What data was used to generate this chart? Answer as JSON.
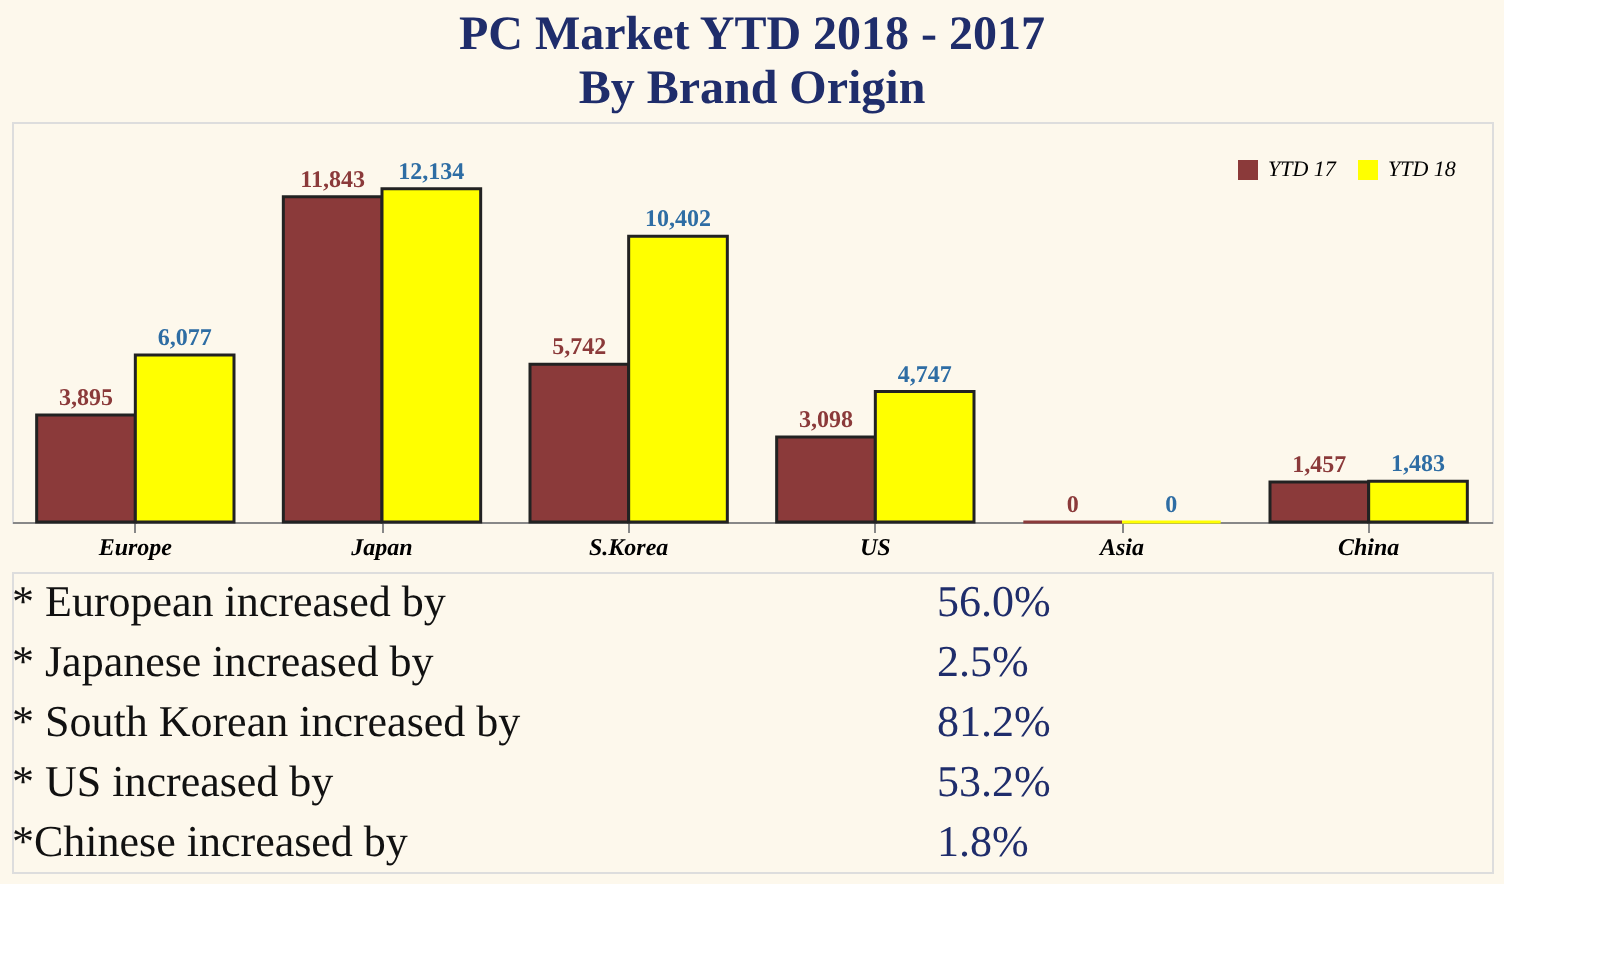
{
  "chart_data": {
    "type": "bar",
    "title": "PC Market YTD 2018 - 2017",
    "subtitle": "By Brand Origin",
    "categories": [
      "Europe",
      "Japan",
      "S.Korea",
      "US",
      "Asia",
      "China"
    ],
    "series": [
      {
        "name": "YTD 17",
        "color": "#8b3a3a",
        "values": [
          3895,
          11843,
          5742,
          3098,
          0,
          1457
        ],
        "value_labels": [
          "3,895",
          "11,843",
          "5,742",
          "3,098",
          "0",
          "1,457"
        ]
      },
      {
        "name": "YTD 18",
        "color": "#ffff00",
        "values": [
          6077,
          12134,
          10402,
          4747,
          0,
          1483
        ],
        "value_labels": [
          "6,077",
          "12,134",
          "10,402",
          "4,747",
          "0",
          "1,483"
        ]
      }
    ],
    "legend": "top right",
    "grid": false,
    "annotations": [
      "* European increased by",
      "56.0%",
      "* Japanese increased by",
      "2.5%",
      "* South Korean increased by",
      "81.2%",
      "* US increased by",
      "53.2%",
      "*Chinese increased by",
      "1.8%"
    ]
  }
}
